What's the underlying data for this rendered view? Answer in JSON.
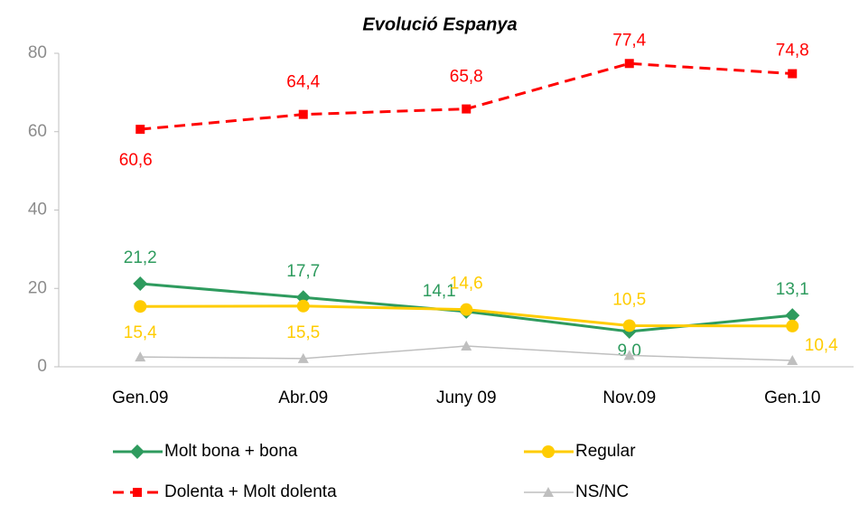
{
  "chart_data": {
    "type": "line",
    "title": "Evolució Espanya",
    "categories": [
      "Gen.09",
      "Abr.09",
      "Juny 09",
      "Nov.09",
      "Gen.10"
    ],
    "ylim": [
      0,
      80
    ],
    "yticks": [
      0,
      20,
      40,
      60,
      80
    ],
    "series": [
      {
        "name": "Molt bona + bona",
        "color": "#2e9b5e",
        "marker": "diamond",
        "dashed": false,
        "values": [
          21.2,
          17.7,
          14.1,
          9.0,
          13.1
        ],
        "value_labels": [
          "21,2",
          "17,7",
          "14,1",
          "9,0",
          "13,1"
        ]
      },
      {
        "name": "Regular",
        "color": "#ffcc00",
        "marker": "circle",
        "dashed": false,
        "values": [
          15.4,
          15.5,
          14.6,
          10.5,
          10.4
        ],
        "value_labels": [
          "15,4",
          "15,5",
          "14,6",
          "10,5",
          "10,4"
        ]
      },
      {
        "name": "Dolenta + Molt dolenta",
        "color": "#ff0000",
        "marker": "square",
        "dashed": true,
        "values": [
          60.6,
          64.4,
          65.8,
          77.4,
          74.8
        ],
        "value_labels": [
          "60,6",
          "64,4",
          "65,8",
          "77,4",
          "74,8"
        ]
      },
      {
        "name": "NS/NC",
        "color": "#bfbfbf",
        "marker": "triangle",
        "dashed": false,
        "values": [
          2.5,
          2.1,
          5.3,
          2.9,
          1.6
        ]
      }
    ]
  }
}
